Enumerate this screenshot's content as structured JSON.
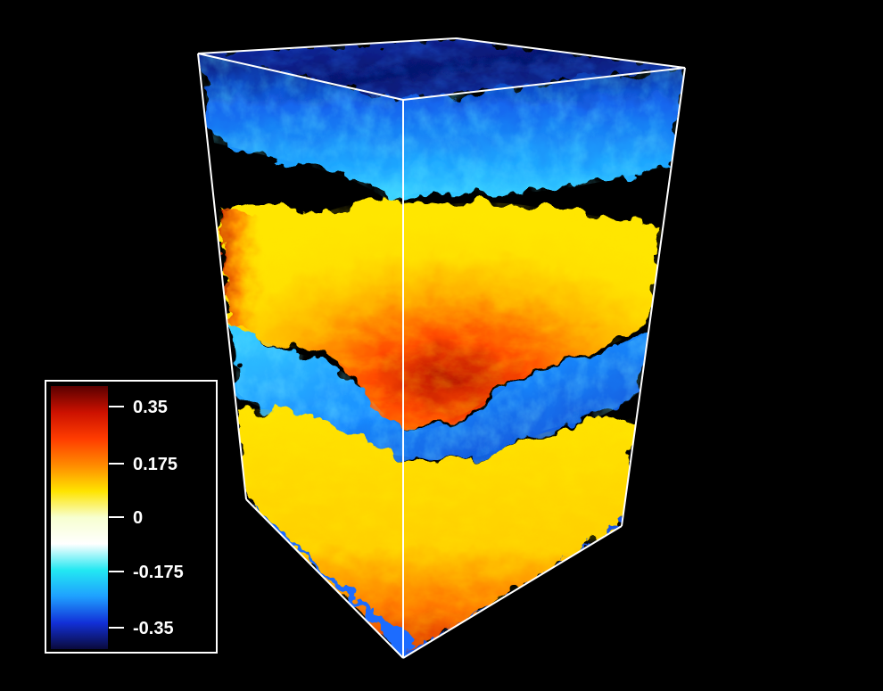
{
  "figure": {
    "subject": "3D volume rendering of a turbulent layered field",
    "colorbar": {
      "ticks": [
        "0.35",
        "0.175",
        "0",
        "-0.175",
        "-0.35"
      ],
      "colors": [
        "#0a0a3c",
        "#1230d8",
        "#1fa0ff",
        "#22e8f2",
        "#ffffff",
        "#f7ffd0",
        "#ffe400",
        "#ff8a00",
        "#ff3c00",
        "#cc1100",
        "#5a0000"
      ]
    },
    "colors": {
      "background": "#000000",
      "frame": "#ffffff",
      "cold_dark": "#061a7a",
      "cold": "#1a8cff",
      "cold_light": "#3cd2ff",
      "warm_light": "#ffe000",
      "warm": "#ff8c00",
      "warm_dark": "#c81e00"
    }
  }
}
